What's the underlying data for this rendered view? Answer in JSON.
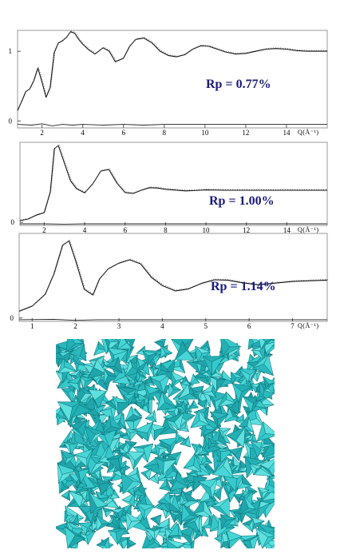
{
  "chart_data": [
    {
      "type": "line",
      "annotation": "Rp = 0.77%",
      "xlabel": "Q(Å⁻¹)",
      "xlim": [
        0.8,
        16.0
      ],
      "x_ticks": [
        2,
        4,
        6,
        8,
        10,
        12,
        14
      ],
      "ylim": [
        -0.1,
        1.3
      ],
      "y_ticks": [
        0,
        1
      ],
      "series": [
        {
          "kind": "fit",
          "x": [
            0.8,
            1.0,
            1.2,
            1.4,
            1.6,
            1.8,
            2.0,
            2.2,
            2.4,
            2.6,
            2.8,
            3.0,
            3.2,
            3.4,
            3.6,
            3.8,
            4.0,
            4.3,
            4.6,
            5.0,
            5.3,
            5.6,
            6.0,
            6.3,
            6.6,
            7.0,
            7.4,
            7.8,
            8.2,
            8.6,
            9.0,
            9.4,
            9.8,
            10.2,
            10.6,
            11.0,
            11.5,
            12.0,
            12.5,
            13.0,
            13.5,
            14.0,
            14.5,
            15.0,
            15.5,
            16.0
          ],
          "y": [
            0.15,
            0.28,
            0.42,
            0.46,
            0.58,
            0.76,
            0.56,
            0.34,
            0.48,
            0.98,
            1.12,
            1.15,
            1.2,
            1.28,
            1.26,
            1.17,
            1.1,
            1.02,
            0.96,
            1.05,
            1.0,
            0.85,
            0.9,
            1.07,
            1.17,
            1.19,
            1.12,
            1.0,
            0.94,
            0.92,
            0.95,
            1.03,
            1.08,
            1.07,
            1.03,
            0.99,
            0.96,
            0.97,
            1.0,
            1.03,
            1.04,
            1.03,
            1.01,
            1.0,
            1.0,
            1.0
          ]
        },
        {
          "kind": "difference",
          "x": [
            0.8,
            1.5,
            2.0,
            2.5,
            3.0,
            3.5,
            4.0,
            5.0,
            6.0,
            7.0,
            8.0,
            9.0,
            10.0,
            11.0,
            12.0,
            13.0,
            14.0,
            15.0,
            16.0
          ],
          "y": [
            -0.05,
            -0.06,
            -0.04,
            -0.07,
            -0.05,
            -0.06,
            -0.05,
            -0.06,
            -0.05,
            -0.06,
            -0.05,
            -0.05,
            -0.05,
            -0.05,
            -0.05,
            -0.05,
            -0.05,
            -0.05,
            -0.05
          ]
        }
      ]
    },
    {
      "type": "line",
      "annotation": "Rp = 1.00%",
      "xlabel": "Q(Å⁻¹)",
      "xlim": [
        0.8,
        16.0
      ],
      "x_ticks": [
        2,
        4,
        6,
        8,
        10,
        12,
        14
      ],
      "ylim": [
        -0.1,
        2.5
      ],
      "y_ticks": [
        0
      ],
      "series": [
        {
          "kind": "fit",
          "x": [
            0.8,
            1.2,
            1.6,
            2.0,
            2.3,
            2.5,
            2.7,
            3.0,
            3.3,
            3.6,
            4.0,
            4.4,
            4.8,
            5.2,
            5.6,
            6.0,
            6.4,
            6.8,
            7.2,
            7.6,
            8.0,
            9.0,
            10.0,
            11.0,
            12.0,
            13.0,
            14.0,
            15.0,
            16.0
          ],
          "y": [
            0.05,
            0.1,
            0.22,
            0.3,
            0.95,
            2.3,
            2.4,
            1.85,
            1.3,
            1.05,
            0.92,
            1.2,
            1.6,
            1.65,
            1.22,
            0.93,
            0.9,
            1.0,
            1.08,
            1.07,
            1.03,
            0.98,
            1.01,
            1.0,
            1.0,
            1.0,
            1.0,
            1.0,
            1.0
          ]
        },
        {
          "kind": "difference",
          "x": [
            0.8,
            2.0,
            3.0,
            4.0,
            6.0,
            8.0,
            10.0,
            12.0,
            14.0,
            16.0
          ],
          "y": [
            -0.05,
            -0.05,
            -0.06,
            -0.05,
            -0.05,
            -0.05,
            -0.05,
            -0.05,
            -0.05,
            -0.05
          ]
        }
      ]
    },
    {
      "type": "line",
      "annotation": "Rp = 1.14%",
      "xlabel": "Q(Å⁻¹)",
      "xlim": [
        0.7,
        7.8
      ],
      "x_ticks": [
        1,
        2,
        3,
        4,
        5,
        6,
        7
      ],
      "ylim": [
        -0.1,
        2.5
      ],
      "y_ticks": [
        0
      ],
      "series": [
        {
          "kind": "fit",
          "x": [
            0.7,
            1.0,
            1.3,
            1.5,
            1.7,
            1.85,
            2.0,
            2.2,
            2.4,
            2.55,
            2.75,
            3.0,
            3.25,
            3.5,
            3.75,
            4.0,
            4.3,
            4.6,
            4.9,
            5.2,
            5.5,
            5.8,
            6.2,
            6.6,
            7.0,
            7.4,
            7.8
          ],
          "y": [
            0.2,
            0.35,
            0.7,
            1.3,
            2.15,
            2.28,
            1.7,
            0.85,
            0.68,
            1.15,
            1.45,
            1.62,
            1.72,
            1.6,
            1.2,
            0.96,
            0.8,
            0.86,
            1.02,
            1.13,
            1.12,
            1.05,
            0.98,
            1.03,
            1.08,
            1.1,
            1.12
          ]
        },
        {
          "kind": "difference",
          "x": [
            0.7,
            1.5,
            2.0,
            2.5,
            3.0,
            4.0,
            5.0,
            6.0,
            7.0,
            7.8
          ],
          "y": [
            -0.05,
            -0.04,
            -0.07,
            -0.05,
            -0.05,
            -0.05,
            -0.05,
            -0.05,
            -0.05,
            -0.05
          ]
        }
      ]
    }
  ]
}
